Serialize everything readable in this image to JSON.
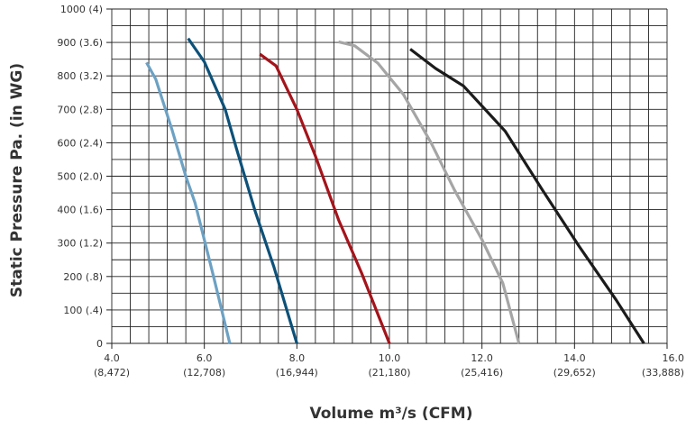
{
  "chart_data": {
    "type": "line",
    "ylabel": "Static Pressure Pa. (in WG)",
    "xlabel": "Volume m³/s (CFM)",
    "xlim": [
      4.0,
      16.0
    ],
    "ylim": [
      0,
      1000
    ],
    "x_ticks": [
      {
        "value": 4.0,
        "label": "4.0",
        "sublabel": "(8,472)"
      },
      {
        "value": 6.0,
        "label": "6.0",
        "sublabel": "(12,708)"
      },
      {
        "value": 8.0,
        "label": "8.0",
        "sublabel": "(16,944)"
      },
      {
        "value": 10.0,
        "label": "10.0",
        "sublabel": "(21,180)"
      },
      {
        "value": 12.0,
        "label": "12.0",
        "sublabel": "(25,416)"
      },
      {
        "value": 14.0,
        "label": "14.0",
        "sublabel": "(29,652)"
      },
      {
        "value": 16.0,
        "label": "16.0",
        "sublabel": "(33,888)"
      }
    ],
    "y_ticks": [
      {
        "value": 0,
        "label": "0"
      },
      {
        "value": 100,
        "label": "100 (.4)"
      },
      {
        "value": 200,
        "label": "200 (.8)"
      },
      {
        "value": 300,
        "label": "300 (1.2)"
      },
      {
        "value": 400,
        "label": "400 (1.6)"
      },
      {
        "value": 500,
        "label": "500 (2.0)"
      },
      {
        "value": 600,
        "label": "600 (2.4)"
      },
      {
        "value": 700,
        "label": "700 (2.8)"
      },
      {
        "value": 800,
        "label": "800 (3.2)"
      },
      {
        "value": 900,
        "label": "900 (3.6)"
      },
      {
        "value": 1000,
        "label": "1000 (4)"
      }
    ],
    "grid": {
      "x_step": 0.4,
      "y_step": 50
    },
    "series": [
      {
        "color": "#6da1c3",
        "points": [
          [
            4.75,
            840
          ],
          [
            4.95,
            790
          ],
          [
            5.3,
            640
          ],
          [
            5.6,
            500
          ],
          [
            5.8,
            420
          ],
          [
            6.2,
            200
          ],
          [
            6.55,
            0
          ]
        ]
      },
      {
        "color": "#0d5179",
        "points": [
          [
            5.65,
            912
          ],
          [
            6.0,
            842
          ],
          [
            6.45,
            700
          ],
          [
            6.7,
            580
          ],
          [
            7.1,
            395
          ],
          [
            7.5,
            230
          ],
          [
            8.0,
            0
          ]
        ]
      },
      {
        "color": "#a4141b",
        "points": [
          [
            7.2,
            865
          ],
          [
            7.55,
            830
          ],
          [
            8.0,
            700
          ],
          [
            8.4,
            560
          ],
          [
            8.9,
            370
          ],
          [
            9.4,
            210
          ],
          [
            10.0,
            0
          ]
        ]
      },
      {
        "color": "#a5a5a5",
        "points": [
          [
            8.9,
            902
          ],
          [
            9.25,
            890
          ],
          [
            9.75,
            838
          ],
          [
            10.3,
            745
          ],
          [
            10.9,
            600
          ],
          [
            11.4,
            460
          ],
          [
            12.0,
            310
          ],
          [
            12.45,
            180
          ],
          [
            12.8,
            0
          ]
        ]
      },
      {
        "color": "#1b1b1b",
        "points": [
          [
            10.45,
            880
          ],
          [
            11.0,
            822
          ],
          [
            11.6,
            770
          ],
          [
            12.5,
            635
          ],
          [
            13.3,
            460
          ],
          [
            14.1,
            290
          ],
          [
            14.9,
            130
          ],
          [
            15.5,
            0
          ]
        ]
      }
    ]
  }
}
